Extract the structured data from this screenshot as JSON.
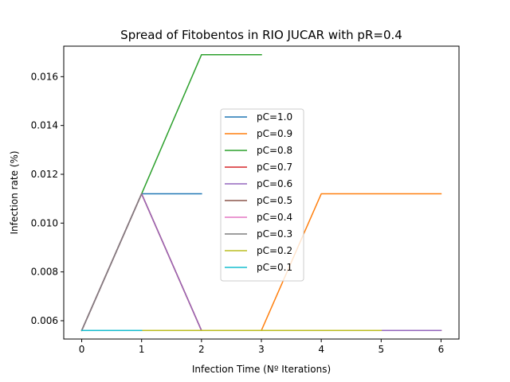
{
  "chart_data": {
    "type": "line",
    "title": "Spread of Fitobentos in RIO JUCAR with pR=0.4",
    "xlabel": "Infection Time (Nº Iterations)",
    "ylabel": "Infection rate (%)",
    "xlim": [
      -0.3,
      6.3
    ],
    "ylim": [
      0.00525,
      0.01725
    ],
    "xticks": [
      0,
      1,
      2,
      3,
      4,
      5,
      6
    ],
    "xtick_labels": [
      "0",
      "1",
      "2",
      "3",
      "4",
      "5",
      "6"
    ],
    "yticks": [
      0.006,
      0.008,
      0.01,
      0.012,
      0.014,
      0.016
    ],
    "ytick_labels": [
      "0.006",
      "0.008",
      "0.010",
      "0.012",
      "0.014",
      "0.016"
    ],
    "grid": false,
    "legend_position": "center",
    "series": [
      {
        "name": "pC=1.0",
        "color": "#1f77b4",
        "x": [
          0,
          1,
          2
        ],
        "values": [
          0.0056,
          0.0112,
          0.0112
        ]
      },
      {
        "name": "pC=0.9",
        "color": "#ff7f0e",
        "x": [
          0,
          1,
          2,
          3,
          4,
          5,
          6
        ],
        "values": [
          0.0056,
          0.0112,
          0.0056,
          0.0056,
          0.0112,
          0.0112,
          0.0112
        ]
      },
      {
        "name": "pC=0.8",
        "color": "#2ca02c",
        "x": [
          0,
          1,
          2,
          3
        ],
        "values": [
          0.0056,
          0.0112,
          0.0169,
          0.0169
        ]
      },
      {
        "name": "pC=0.7",
        "color": "#d62728",
        "x": [
          0,
          1,
          2,
          3,
          4,
          5,
          6
        ],
        "values": [
          0.0056,
          0.0112,
          0.0056,
          0.0056,
          0.0056,
          0.0056,
          0.0056
        ]
      },
      {
        "name": "pC=0.6",
        "color": "#9467bd",
        "x": [
          0,
          1,
          2,
          3,
          4,
          5,
          6
        ],
        "values": [
          0.0056,
          0.0112,
          0.0056,
          0.0056,
          0.0056,
          0.0056,
          0.0056
        ]
      },
      {
        "name": "pC=0.5",
        "color": "#8c564b",
        "x": [
          0,
          1
        ],
        "values": [
          0.0056,
          0.0112
        ]
      },
      {
        "name": "pC=0.4",
        "color": "#e377c2",
        "x": [
          0,
          1
        ],
        "values": [
          0.0056,
          0.0112
        ]
      },
      {
        "name": "pC=0.3",
        "color": "#7f7f7f",
        "x": [
          0,
          1
        ],
        "values": [
          0.0056,
          0.0112
        ]
      },
      {
        "name": "pC=0.2",
        "color": "#bcbd22",
        "x": [
          0,
          1,
          2,
          3,
          4,
          5
        ],
        "values": [
          0.0056,
          0.0056,
          0.0056,
          0.0056,
          0.0056,
          0.0056
        ]
      },
      {
        "name": "pC=0.1",
        "color": "#17becf",
        "x": [
          0,
          1
        ],
        "values": [
          0.0056,
          0.0056
        ]
      }
    ]
  }
}
